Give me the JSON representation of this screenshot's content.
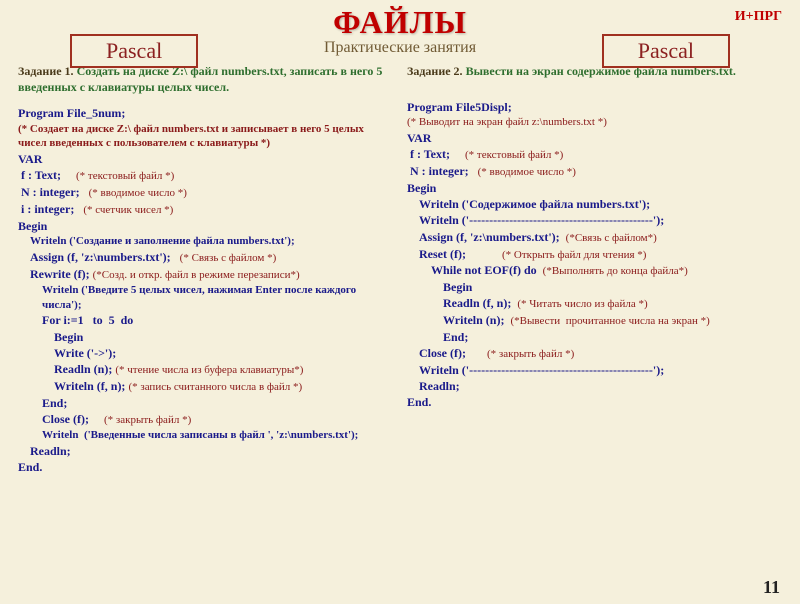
{
  "corner": "И+ПРГ",
  "title": "ФАЙЛЫ",
  "subtitle": "Практические занятия",
  "pascal": "Pascal",
  "page": "11",
  "left": {
    "task_label": "Задание 1.",
    "task_text": "Создать на диске Z:\\ файл numbers.txt, записать в него 5 введенных с клавиатуры целых чисел.",
    "prog": "Program File_5num;",
    "hdr_cmt": "(* Создает на диске Z:\\ файл numbers.txt и записывает в него 5 целых чисел введенных с пользователем с клавиатуры *)",
    "var": "VAR",
    "v1": " f : Text;",
    "c1": "(* текстовый файл *)",
    "v2": " N : integer;",
    "c2": "(* вводимое число *)",
    "v3": " i : integer;",
    "c3": "(* счетчик чисел *)",
    "begin": "Begin",
    "l1": "Writeln ('Создание и заполнение файла numbers.txt');",
    "l2": "Assign (f, 'z:\\numbers.txt');",
    "lc2": "(* Связь с файлом *)",
    "l3": "Rewrite (f);",
    "lc3": "(*Созд. и откр. файл в режиме перезаписи*)",
    "l4a": "Writeln ('Введите 5 целых чисел, нажимая Enter после каждого числа');",
    "l5": "For i:=1   to  5  do",
    "l6": "Begin",
    "l7": "Write ('->');",
    "l8": "Readln (n);",
    "lc8": "(* чтение числа из буфера клавиатуры*)",
    "l9": "Writeln (f, n);",
    "lc9": "(* запись считанного числа в файл *)",
    "l10": "End;",
    "l11": "Close (f);",
    "lc11": "(* закрыть файл *)",
    "l12a": "Writeln  ('Введенные числа записаны в файл ', 'z:\\numbers.txt');",
    "l13": "Readln;",
    "end": "End."
  },
  "right": {
    "task_label": "Задание 2.",
    "task_text": "Вывести на экран содержимое файла numbers.txt.",
    "prog": "Program File5Displ;",
    "hdr_cmt": "(* Выводит на экран файл z:\\numbers.txt *)",
    "var": "VAR",
    "v1": " f : Text;",
    "c1": "(* текстовый файл *)",
    "v2": " N : integer;",
    "c2": "(* вводимое число *)",
    "begin": "Begin",
    "l1": "Writeln ('Содержимое файла numbers.txt');",
    "l2": "Writeln ('----------------------------------------------');",
    "l3": "Assign (f, 'z:\\numbers.txt');",
    "lc3": "(*Связь с файлом*)",
    "l4": "Reset (f);",
    "lc4": "(* Открыть файл для чтения *)",
    "l5": "While not EOF(f) do",
    "lc5": "(*Выполнять до конца файла*)",
    "l6": "Begin",
    "l7": "Readln (f, n);",
    "lc7": "(* Читать число из файла *)",
    "l8": "Writeln (n);",
    "lc8": "(*Вывести  прочитанное числа на экран *)",
    "l9": "End;",
    "l10": "Close (f);",
    "lc10": "(* закрыть файл *)",
    "l11": "Writeln ('----------------------------------------------');",
    "l12": "Readln;",
    "end": "End."
  }
}
